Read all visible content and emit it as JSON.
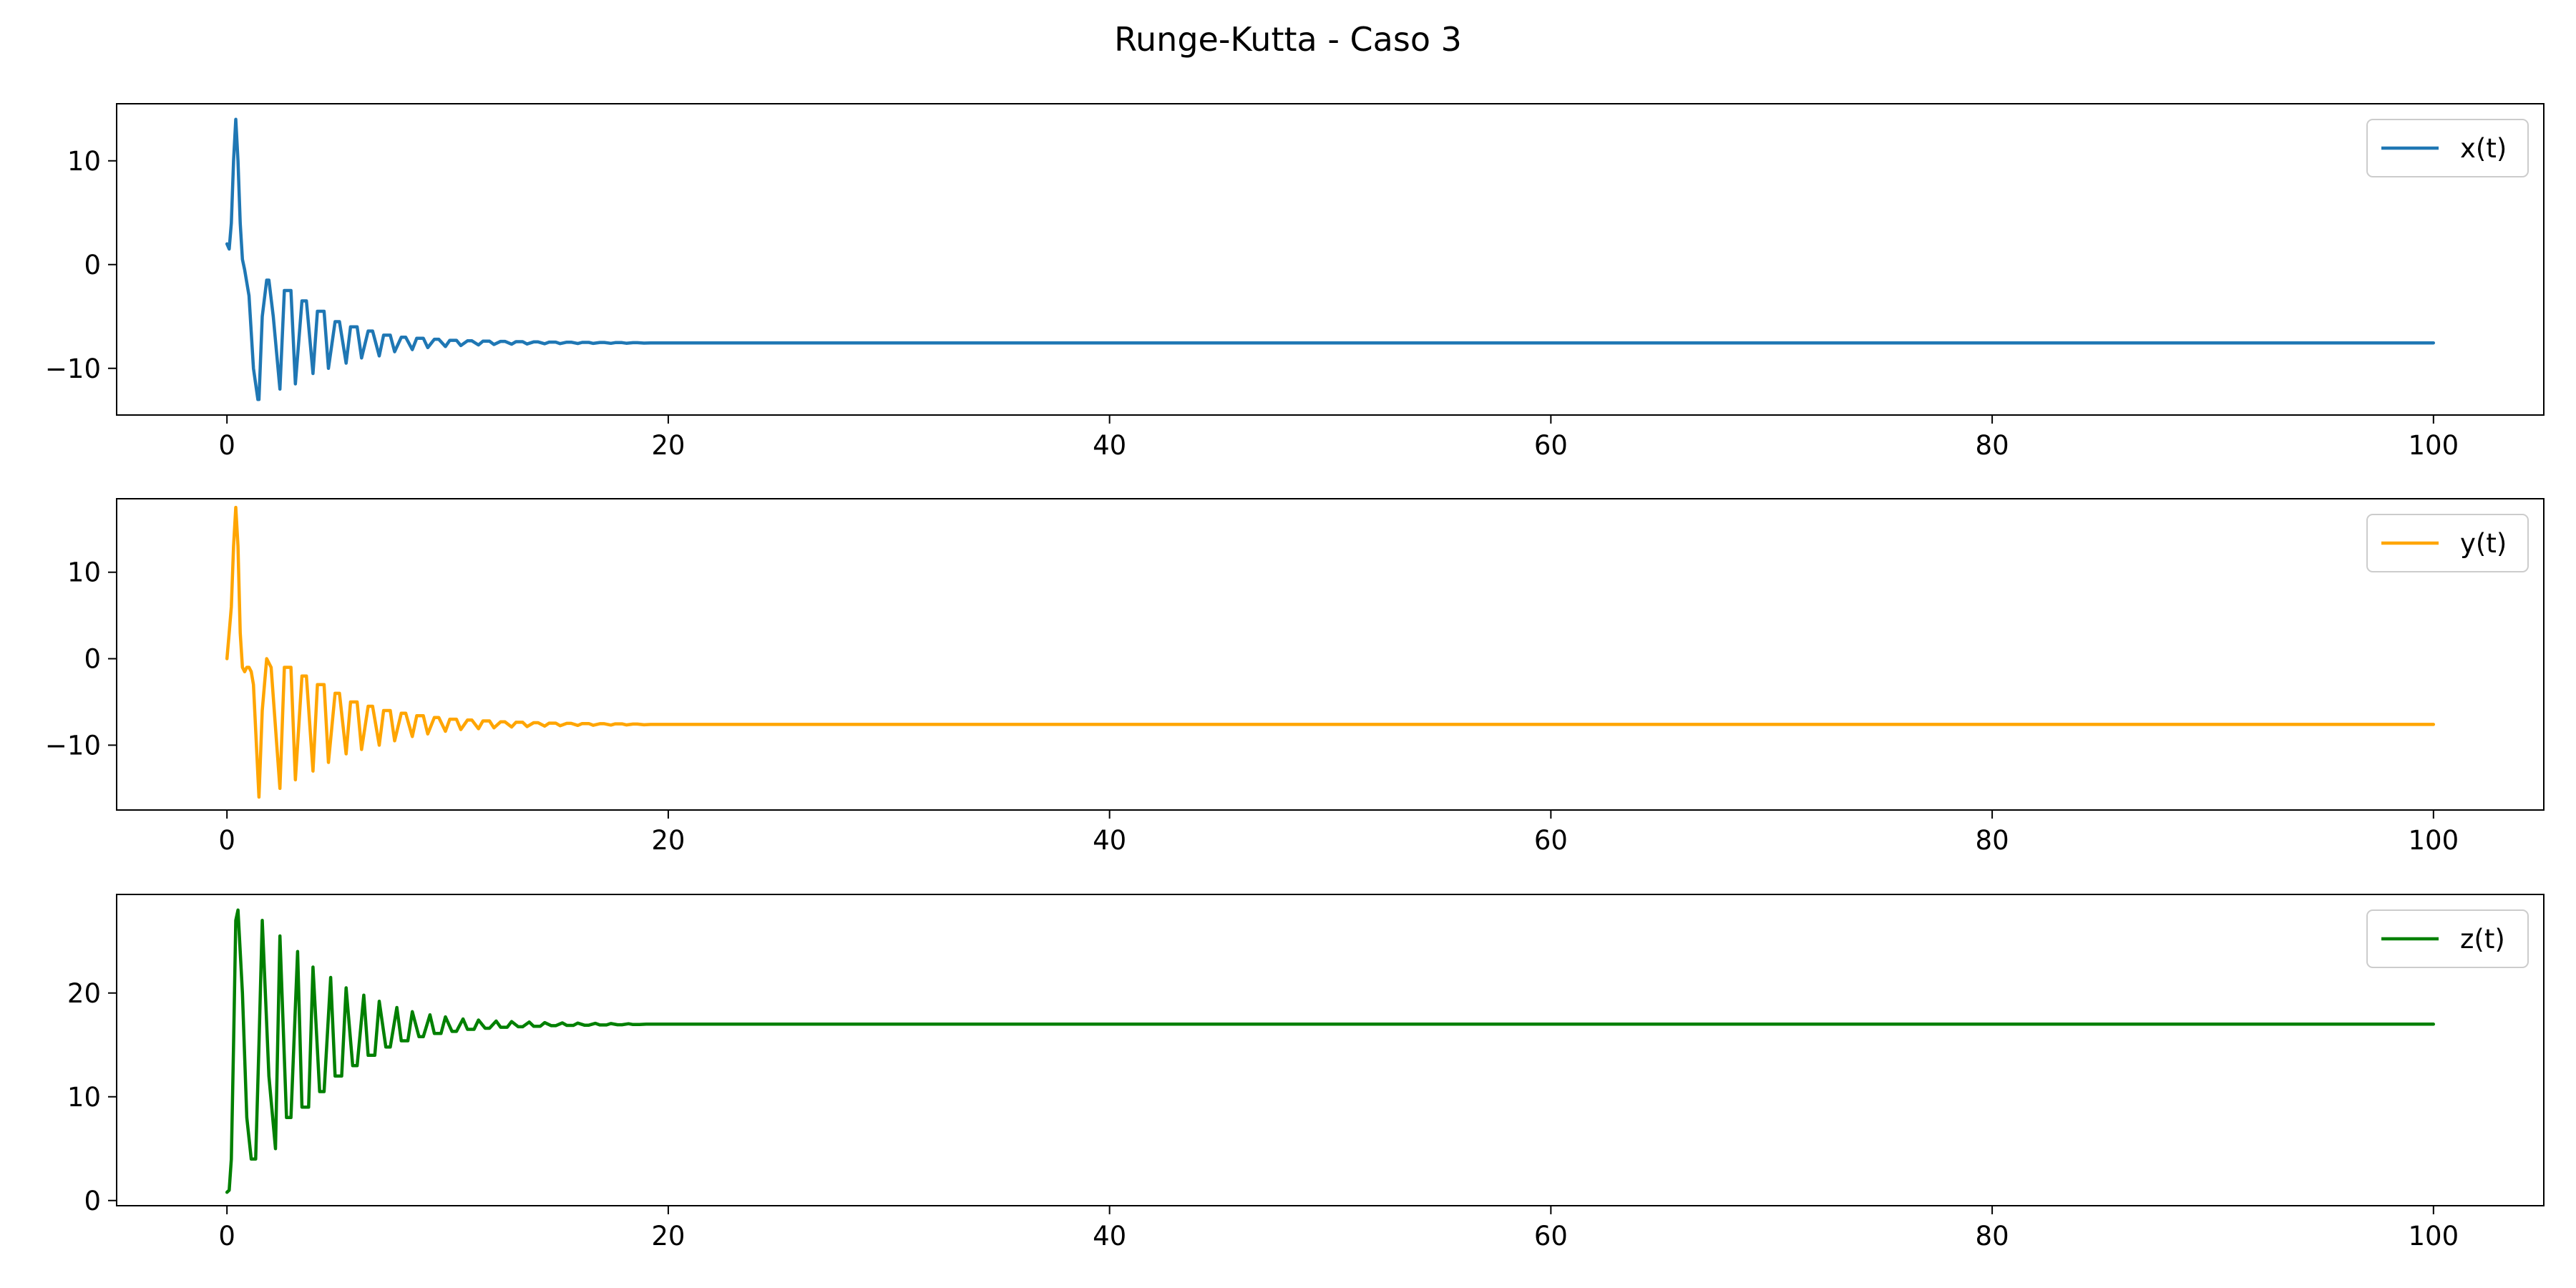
{
  "figure": {
    "title": "Runge-Kutta - Caso 3"
  },
  "chart_data": [
    {
      "type": "line",
      "title": "",
      "xlabel": "",
      "ylabel": "",
      "xlim": [
        -5,
        105
      ],
      "ylim": [
        -14.5,
        15.5
      ],
      "xticks": [
        0,
        20,
        40,
        60,
        80,
        100
      ],
      "yticks": [
        -10,
        0,
        10
      ],
      "grid": false,
      "legend": "top-right",
      "series": [
        {
          "name": "x(t)",
          "color": "#1f77b4",
          "x": [
            0,
            0.1,
            0.2,
            0.3,
            0.4,
            0.5,
            0.6,
            0.7,
            0.8,
            1.0,
            1.2,
            1.4,
            1.45,
            1.6,
            1.8,
            1.9,
            2.1,
            2.4,
            2.6,
            2.9,
            3.1,
            3.4,
            3.6,
            3.9,
            4.1,
            4.4,
            4.6,
            4.9,
            5.1,
            5.4,
            5.6,
            5.9,
            6.1,
            6.4,
            6.6,
            6.9,
            7.1,
            7.4,
            7.6,
            7.9,
            8.1,
            8.4,
            8.6,
            8.9,
            9.1,
            9.4,
            9.6,
            9.9,
            10.1,
            10.4,
            10.6,
            10.9,
            11.1,
            11.4,
            11.6,
            11.9,
            12.1,
            12.4,
            12.6,
            12.9,
            13.1,
            13.4,
            13.6,
            13.9,
            14.1,
            14.4,
            14.6,
            14.9,
            15.1,
            15.4,
            15.6,
            15.9,
            16.1,
            16.4,
            16.6,
            16.9,
            17.1,
            17.4,
            17.6,
            17.9,
            18.1,
            18.4,
            18.6,
            18.9,
            19.2,
            20,
            30,
            40,
            50,
            60,
            70,
            80,
            90,
            100
          ],
          "y": [
            2,
            1.5,
            4,
            10,
            14,
            10,
            4,
            0.5,
            -0.5,
            -3,
            -10,
            -13,
            -13,
            -5,
            -1.5,
            -1.5,
            -5,
            -12,
            -2.5,
            -2.5,
            -11.5,
            -3.5,
            -3.5,
            -10.5,
            -4.5,
            -4.5,
            -10,
            -5.5,
            -5.5,
            -9.5,
            -6,
            -6,
            -9,
            -6.4,
            -6.4,
            -8.8,
            -6.8,
            -6.8,
            -8.4,
            -7,
            -7,
            -8.2,
            -7.1,
            -7.1,
            -8,
            -7.2,
            -7.2,
            -7.9,
            -7.3,
            -7.3,
            -7.8,
            -7.35,
            -7.35,
            -7.75,
            -7.38,
            -7.38,
            -7.7,
            -7.4,
            -7.4,
            -7.67,
            -7.43,
            -7.43,
            -7.65,
            -7.45,
            -7.45,
            -7.63,
            -7.47,
            -7.47,
            -7.62,
            -7.48,
            -7.48,
            -7.61,
            -7.5,
            -7.5,
            -7.6,
            -7.51,
            -7.51,
            -7.59,
            -7.52,
            -7.52,
            -7.58,
            -7.53,
            -7.53,
            -7.57,
            -7.55,
            -7.55,
            -7.55,
            -7.55,
            -7.55,
            -7.55,
            -7.55,
            -7.55,
            -7.55,
            -7.55
          ]
        }
      ]
    },
    {
      "type": "line",
      "title": "",
      "xlabel": "",
      "ylabel": "",
      "xlim": [
        -5,
        105
      ],
      "ylim": [
        -17.5,
        18.5
      ],
      "xticks": [
        0,
        20,
        40,
        60,
        80,
        100
      ],
      "yticks": [
        -10,
        0,
        10
      ],
      "grid": false,
      "legend": "top-right",
      "series": [
        {
          "name": "y(t)",
          "color": "#ffa500",
          "x": [
            0,
            0.1,
            0.2,
            0.3,
            0.4,
            0.5,
            0.6,
            0.7,
            0.8,
            0.9,
            1.0,
            1.1,
            1.2,
            1.45,
            1.6,
            1.8,
            2.0,
            2.4,
            2.6,
            2.9,
            3.1,
            3.4,
            3.6,
            3.9,
            4.1,
            4.4,
            4.6,
            4.9,
            5.1,
            5.4,
            5.6,
            5.9,
            6.1,
            6.4,
            6.6,
            6.9,
            7.1,
            7.4,
            7.6,
            7.9,
            8.1,
            8.4,
            8.6,
            8.9,
            9.1,
            9.4,
            9.6,
            9.9,
            10.1,
            10.4,
            10.6,
            10.9,
            11.1,
            11.4,
            11.6,
            11.9,
            12.1,
            12.4,
            12.6,
            12.9,
            13.1,
            13.4,
            13.6,
            13.9,
            14.1,
            14.4,
            14.6,
            14.9,
            15.1,
            15.4,
            15.6,
            15.9,
            16.1,
            16.4,
            16.6,
            16.9,
            17.1,
            17.4,
            17.6,
            17.9,
            18.1,
            18.4,
            18.6,
            18.9,
            19.2,
            20,
            30,
            40,
            50,
            60,
            70,
            80,
            90,
            100
          ],
          "y": [
            0,
            3,
            6,
            13,
            17.5,
            13,
            3,
            -1,
            -1.5,
            -1,
            -1,
            -1.5,
            -3,
            -16,
            -6,
            0,
            -1,
            -15,
            -1,
            -1,
            -14,
            -2,
            -2,
            -13,
            -3,
            -3,
            -12,
            -4,
            -4,
            -11,
            -5,
            -5,
            -10.5,
            -5.5,
            -5.5,
            -10,
            -6,
            -6,
            -9.5,
            -6.3,
            -6.3,
            -9,
            -6.6,
            -6.6,
            -8.7,
            -6.8,
            -6.8,
            -8.4,
            -7,
            -7,
            -8.2,
            -7.1,
            -7.1,
            -8.1,
            -7.2,
            -7.2,
            -8,
            -7.3,
            -7.3,
            -7.9,
            -7.35,
            -7.35,
            -7.85,
            -7.4,
            -7.4,
            -7.8,
            -7.45,
            -7.45,
            -7.75,
            -7.48,
            -7.48,
            -7.72,
            -7.5,
            -7.5,
            -7.7,
            -7.52,
            -7.52,
            -7.68,
            -7.54,
            -7.54,
            -7.66,
            -7.56,
            -7.56,
            -7.64,
            -7.6,
            -7.6,
            -7.6,
            -7.6,
            -7.6,
            -7.6,
            -7.6,
            -7.6,
            -7.6,
            -7.6
          ]
        }
      ]
    },
    {
      "type": "line",
      "title": "",
      "xlabel": "",
      "ylabel": "",
      "xlim": [
        -5,
        105
      ],
      "ylim": [
        -0.5,
        29.5
      ],
      "xticks": [
        0,
        20,
        40,
        60,
        80,
        100
      ],
      "yticks": [
        0,
        10,
        20
      ],
      "grid": false,
      "legend": "top-right",
      "series": [
        {
          "name": "z(t)",
          "color": "#008000",
          "x": [
            0,
            0.1,
            0.2,
            0.3,
            0.4,
            0.5,
            0.7,
            0.9,
            1.1,
            1.3,
            1.45,
            1.6,
            1.9,
            2.2,
            2.4,
            2.7,
            2.9,
            3.2,
            3.4,
            3.7,
            3.9,
            4.2,
            4.4,
            4.7,
            4.9,
            5.2,
            5.4,
            5.7,
            5.9,
            6.2,
            6.4,
            6.7,
            6.9,
            7.2,
            7.4,
            7.7,
            7.9,
            8.2,
            8.4,
            8.7,
            8.9,
            9.2,
            9.4,
            9.7,
            9.9,
            10.2,
            10.4,
            10.7,
            10.9,
            11.2,
            11.4,
            11.7,
            11.9,
            12.2,
            12.4,
            12.7,
            12.9,
            13.2,
            13.4,
            13.7,
            13.9,
            14.2,
            14.4,
            14.7,
            14.9,
            15.2,
            15.4,
            15.7,
            15.9,
            16.2,
            16.4,
            16.7,
            16.9,
            17.2,
            17.4,
            17.7,
            17.9,
            18.2,
            18.4,
            18.7,
            19,
            20,
            30,
            40,
            50,
            60,
            70,
            80,
            90,
            100
          ],
          "y": [
            0.8,
            1,
            4,
            15,
            27,
            28,
            20,
            8,
            4,
            4,
            15,
            27,
            12,
            5,
            25.5,
            8,
            8,
            24,
            9,
            9,
            22.5,
            10.5,
            10.5,
            21.5,
            12,
            12,
            20.5,
            13,
            13,
            19.8,
            14,
            14,
            19.2,
            14.8,
            14.8,
            18.6,
            15.4,
            15.4,
            18.2,
            15.8,
            15.8,
            17.9,
            16.1,
            16.1,
            17.7,
            16.3,
            16.3,
            17.5,
            16.5,
            16.5,
            17.4,
            16.6,
            16.6,
            17.3,
            16.7,
            16.7,
            17.25,
            16.75,
            16.75,
            17.2,
            16.8,
            16.8,
            17.15,
            16.85,
            16.85,
            17.12,
            16.88,
            16.88,
            17.1,
            16.9,
            16.9,
            17.08,
            16.92,
            16.92,
            17.06,
            16.94,
            16.94,
            17.04,
            16.96,
            16.96,
            17,
            17,
            17,
            17,
            17,
            17,
            17,
            17,
            17,
            17
          ]
        }
      ]
    }
  ]
}
